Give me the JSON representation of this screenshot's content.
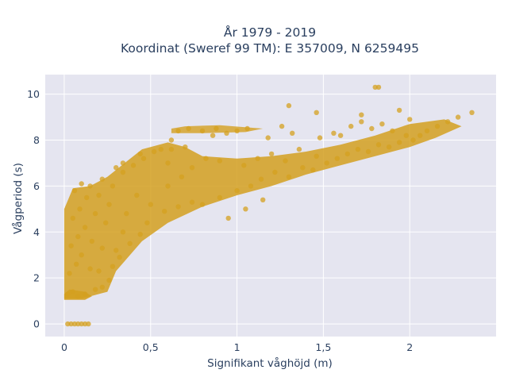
{
  "chart_data": {
    "type": "scatter",
    "title_line1": "År 1979 - 2019",
    "title_line2": "Koordinat (Sweref 99 TM): E 357009, N 6259495",
    "xlabel": "Signifikant våghöjd (m)",
    "ylabel": "Vågperiod (s)",
    "xlim": [
      -0.11,
      2.5
    ],
    "ylim": [
      -0.55,
      10.85
    ],
    "x_ticks": [
      0,
      0.5,
      1,
      1.5,
      2
    ],
    "x_tick_labels": [
      "0",
      "0,5",
      "1",
      "1,5",
      "2"
    ],
    "y_ticks": [
      0,
      2,
      4,
      6,
      8,
      10
    ],
    "y_tick_labels": [
      "0",
      "2",
      "4",
      "6",
      "8",
      "10"
    ],
    "grid": true,
    "legend": "none",
    "colors": {
      "marker": "#d4a020",
      "plot_background": "#e5e5f0",
      "grid": "#ffffff",
      "text": "#2a3f5f"
    },
    "series": [
      {
        "marker": "circle",
        "points": [
          [
            0.02,
            0
          ],
          [
            0.04,
            0
          ],
          [
            0.06,
            0
          ],
          [
            0.08,
            0
          ],
          [
            0.1,
            0
          ],
          [
            0.12,
            0
          ],
          [
            0.14,
            0
          ],
          [
            0.02,
            1.3
          ],
          [
            0.05,
            1.4
          ],
          [
            0.08,
            1.2
          ],
          [
            0.12,
            1.3
          ],
          [
            0.18,
            1.5
          ],
          [
            0.22,
            1.6
          ],
          [
            0.26,
            1.9
          ],
          [
            0.03,
            2.2
          ],
          [
            0.07,
            2.6
          ],
          [
            0.1,
            3.0
          ],
          [
            0.15,
            2.4
          ],
          [
            0.2,
            2.3
          ],
          [
            0.28,
            2.5
          ],
          [
            0.32,
            2.9
          ],
          [
            0.04,
            3.4
          ],
          [
            0.08,
            3.8
          ],
          [
            0.12,
            4.2
          ],
          [
            0.16,
            3.6
          ],
          [
            0.22,
            3.3
          ],
          [
            0.3,
            3.2
          ],
          [
            0.38,
            3.5
          ],
          [
            0.05,
            4.6
          ],
          [
            0.09,
            5.0
          ],
          [
            0.13,
            5.5
          ],
          [
            0.18,
            4.8
          ],
          [
            0.24,
            4.4
          ],
          [
            0.34,
            4.0
          ],
          [
            0.44,
            3.9
          ],
          [
            0.06,
            5.8
          ],
          [
            0.1,
            6.1
          ],
          [
            0.15,
            6.0
          ],
          [
            0.2,
            5.6
          ],
          [
            0.26,
            5.2
          ],
          [
            0.36,
            4.8
          ],
          [
            0.48,
            4.4
          ],
          [
            0.22,
            6.3
          ],
          [
            0.28,
            6.0
          ],
          [
            0.34,
            6.6
          ],
          [
            0.4,
            6.9
          ],
          [
            0.46,
            7.2
          ],
          [
            0.52,
            7.5
          ],
          [
            0.56,
            7.6
          ],
          [
            0.42,
            5.6
          ],
          [
            0.5,
            5.2
          ],
          [
            0.58,
            4.9
          ],
          [
            0.66,
            5.1
          ],
          [
            0.74,
            5.3
          ],
          [
            0.8,
            5.2
          ],
          [
            0.9,
            5.5
          ],
          [
            0.6,
            6.0
          ],
          [
            0.68,
            6.4
          ],
          [
            0.74,
            6.8
          ],
          [
            0.82,
            7.2
          ],
          [
            0.62,
            7.6
          ],
          [
            0.7,
            7.7
          ],
          [
            0.9,
            7.1
          ],
          [
            0.66,
            8.4
          ],
          [
            0.72,
            8.5
          ],
          [
            0.8,
            8.4
          ],
          [
            0.88,
            8.5
          ],
          [
            0.62,
            8.0
          ],
          [
            0.86,
            8.2
          ],
          [
            0.94,
            8.3
          ],
          [
            1.0,
            5.8
          ],
          [
            1.08,
            6.0
          ],
          [
            1.14,
            6.3
          ],
          [
            1.22,
            6.6
          ],
          [
            1.3,
            6.4
          ],
          [
            1.38,
            6.8
          ],
          [
            1.44,
            6.7
          ],
          [
            1.04,
            6.9
          ],
          [
            1.12,
            7.2
          ],
          [
            1.2,
            7.4
          ],
          [
            1.28,
            7.1
          ],
          [
            1.36,
            7.6
          ],
          [
            1.46,
            7.3
          ],
          [
            1.52,
            7.0
          ],
          [
            1.0,
            8.4
          ],
          [
            1.06,
            8.5
          ],
          [
            1.18,
            8.1
          ],
          [
            1.26,
            8.6
          ],
          [
            1.32,
            8.3
          ],
          [
            1.48,
            8.1
          ],
          [
            1.56,
            8.3
          ],
          [
            1.58,
            7.2
          ],
          [
            1.64,
            7.4
          ],
          [
            1.7,
            7.6
          ],
          [
            1.76,
            7.5
          ],
          [
            1.82,
            7.8
          ],
          [
            1.88,
            7.7
          ],
          [
            1.94,
            7.9
          ],
          [
            1.6,
            8.2
          ],
          [
            1.66,
            8.6
          ],
          [
            1.72,
            8.8
          ],
          [
            1.78,
            8.5
          ],
          [
            1.84,
            8.7
          ],
          [
            1.9,
            8.4
          ],
          [
            1.98,
            8.2
          ],
          [
            2.02,
            8.0
          ],
          [
            2.06,
            8.2
          ],
          [
            2.1,
            8.4
          ],
          [
            2.16,
            8.6
          ],
          [
            2.22,
            8.8
          ],
          [
            2.28,
            9.0
          ],
          [
            2.36,
            9.2
          ],
          [
            1.3,
            9.5
          ],
          [
            1.46,
            9.2
          ],
          [
            1.72,
            9.1
          ],
          [
            1.8,
            10.3
          ],
          [
            1.82,
            10.3
          ],
          [
            1.94,
            9.3
          ],
          [
            2.0,
            8.9
          ],
          [
            0.95,
            4.6
          ],
          [
            1.05,
            5.0
          ],
          [
            1.15,
            5.4
          ],
          [
            0.3,
            6.8
          ],
          [
            0.34,
            7.0
          ],
          [
            0.6,
            7.0
          ],
          [
            0.44,
            7.4
          ]
        ]
      }
    ]
  }
}
